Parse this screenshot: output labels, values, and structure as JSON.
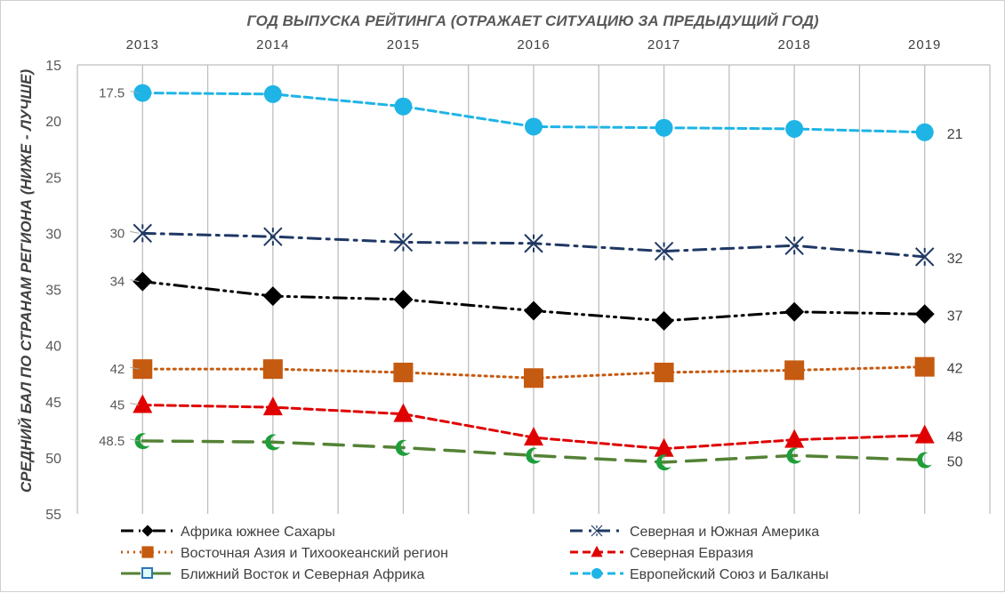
{
  "chart_data": {
    "type": "line",
    "title": "ГОД ВЫПУСКА РЕЙТИНГА (ОТРАЖАЕТ СИТУАЦИЮ ЗА ПРЕДЫДУЩИЙ ГОД)",
    "xlabel": "",
    "ylabel": "СРЕДНИЙ БАЛ ПО СТРАНАМ РЕГИОНА (НИЖЕ - ЛУЧШЕ)",
    "x": [
      "2013",
      "2014",
      "2015",
      "2016",
      "2017",
      "2018",
      "2019"
    ],
    "ylim": [
      15,
      55
    ],
    "y_inverted": true,
    "x_axis_position": "top",
    "yticks": [
      15,
      20,
      25,
      30,
      35,
      40,
      45,
      50,
      55
    ],
    "grid": "vertical",
    "legend_position": "bottom",
    "series": [
      {
        "name": "Африка южнее Сахары",
        "values": [
          34.3,
          35.6,
          35.9,
          36.9,
          37.8,
          37.0,
          37.2
        ],
        "color": "#000000",
        "marker": "diamond",
        "dash": "dash-dot-dot",
        "start_label": "34",
        "end_label": "37"
      },
      {
        "name": "Северная и Южная Америка",
        "values": [
          30.0,
          30.3,
          30.8,
          30.9,
          31.6,
          31.1,
          32.1
        ],
        "color": "#1f3864",
        "marker": "asterisk",
        "dash": "dash-dot",
        "start_label": "30",
        "end_label": "32"
      },
      {
        "name": "Восточная Азия и Тихоокеанский регион",
        "values": [
          42.1,
          42.1,
          42.4,
          42.9,
          42.4,
          42.2,
          41.9
        ],
        "color": "#c55a11",
        "marker": "square",
        "dash": "dot",
        "start_label": "42",
        "end_label": "42"
      },
      {
        "name": "Северная Евразия",
        "values": [
          45.3,
          45.5,
          46.1,
          48.2,
          49.2,
          48.4,
          48.0
        ],
        "color": "#e00000",
        "marker": "triangle",
        "dash": "dash",
        "start_label": "45",
        "end_label": "48"
      },
      {
        "name": "Ближний Восток и Северная Африка",
        "values": [
          48.5,
          48.6,
          49.1,
          49.8,
          50.4,
          49.8,
          50.2
        ],
        "color": "#548235",
        "marker": "crescent",
        "dash": "long-dash",
        "start_label": "48.5",
        "end_label": "50"
      },
      {
        "name": "Европейский Союз и Балканы",
        "values": [
          17.5,
          17.6,
          18.7,
          20.5,
          20.6,
          20.7,
          21.0
        ],
        "color": "#1fb4e6",
        "marker": "circle",
        "dash": "dash",
        "start_label": "17.5",
        "end_label": "21"
      }
    ]
  }
}
